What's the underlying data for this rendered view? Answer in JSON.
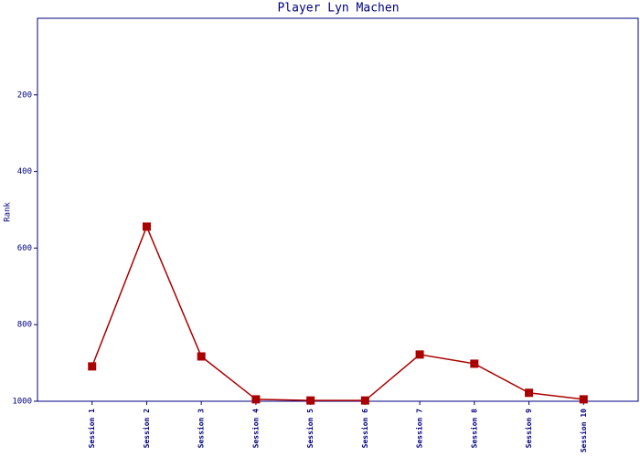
{
  "chart_data": {
    "type": "line",
    "title": "Player Lyn Machen",
    "y_label": "Rank",
    "categories": [
      "Session 1",
      "Session 2",
      "Session 3",
      "Session 4",
      "Session 5",
      "Session 6",
      "Session 7",
      "Session 8",
      "Session 9",
      "Session 10"
    ],
    "series": [
      {
        "name": "Rank",
        "color": "#aa0000",
        "values": [
          909,
          544,
          883,
          995,
          998,
          998,
          878,
          902,
          978,
          995
        ]
      }
    ],
    "ylim": [
      1000,
      0
    ],
    "yticks": [
      200,
      400,
      600,
      800,
      1000
    ]
  }
}
